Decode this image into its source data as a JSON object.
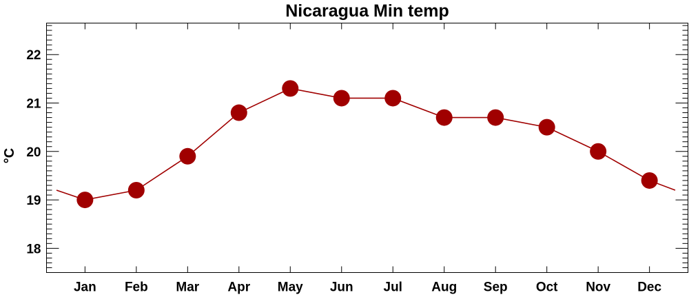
{
  "chart_data": {
    "type": "line",
    "title": "Nicaragua Min temp",
    "xlabel": "",
    "ylabel": "°C",
    "categories": [
      "Jan",
      "Feb",
      "Mar",
      "Apr",
      "May",
      "Jun",
      "Jul",
      "Aug",
      "Sep",
      "Oct",
      "Nov",
      "Dec"
    ],
    "series": [
      {
        "values": [
          19.0,
          19.2,
          19.9,
          20.8,
          21.3,
          21.1,
          21.1,
          20.7,
          20.7,
          20.5,
          20.0,
          19.4
        ]
      }
    ],
    "ylim": [
      17.5,
      22.65
    ],
    "yticks": [
      18,
      19,
      20,
      21,
      22
    ],
    "ytick_labels": [
      "18",
      "19",
      "20",
      "21",
      "22"
    ],
    "grid": false,
    "line_wraps_around_year": true,
    "colors": {
      "line": "#a00000",
      "marker": "#a00000",
      "frame": "#000000"
    }
  }
}
